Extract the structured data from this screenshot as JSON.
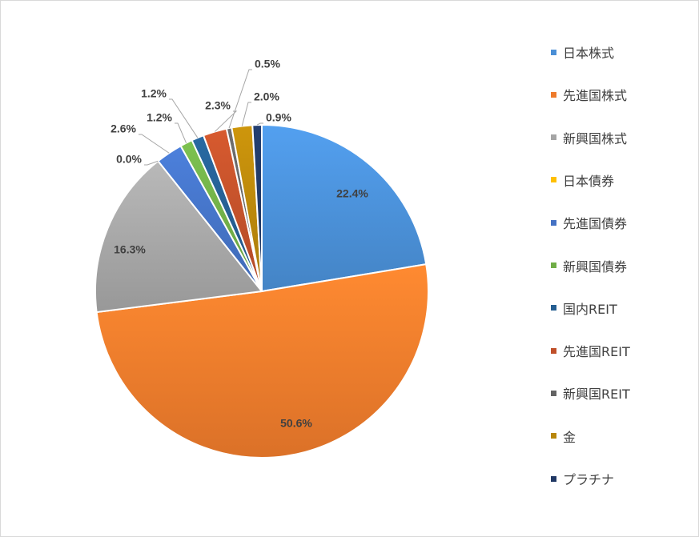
{
  "chart_data": {
    "type": "pie",
    "title": "",
    "legend_position": "right",
    "slices": [
      {
        "label": "日本株式",
        "value": 22.4,
        "value_label": "22.4%",
        "color": "#4a8fd6"
      },
      {
        "label": "先進国株式",
        "value": 50.6,
        "value_label": "50.6%",
        "color": "#ee7b2c"
      },
      {
        "label": "新興国株式",
        "value": 16.3,
        "value_label": "16.3%",
        "color": "#a5a5a5"
      },
      {
        "label": "日本債券",
        "value": 0.0,
        "value_label": "0.0%",
        "color": "#ffc000"
      },
      {
        "label": "先進国債券",
        "value": 2.6,
        "value_label": "2.6%",
        "color": "#4472c4"
      },
      {
        "label": "新興国債券",
        "value": 1.2,
        "value_label": "1.2%",
        "color": "#70ad47"
      },
      {
        "label": "国内REIT",
        "value": 1.2,
        "value_label": "1.2%",
        "color": "#255e91"
      },
      {
        "label": "先進国REIT",
        "value": 2.3,
        "value_label": "2.3%",
        "color": "#c0502a"
      },
      {
        "label": "新興国REIT",
        "value": 0.5,
        "value_label": "0.5%",
        "color": "#636363"
      },
      {
        "label": "金",
        "value": 2.0,
        "value_label": "2.0%",
        "color": "#b8860b"
      },
      {
        "label": "プラチナ",
        "value": 0.9,
        "value_label": "0.9%",
        "color": "#203864"
      }
    ]
  }
}
